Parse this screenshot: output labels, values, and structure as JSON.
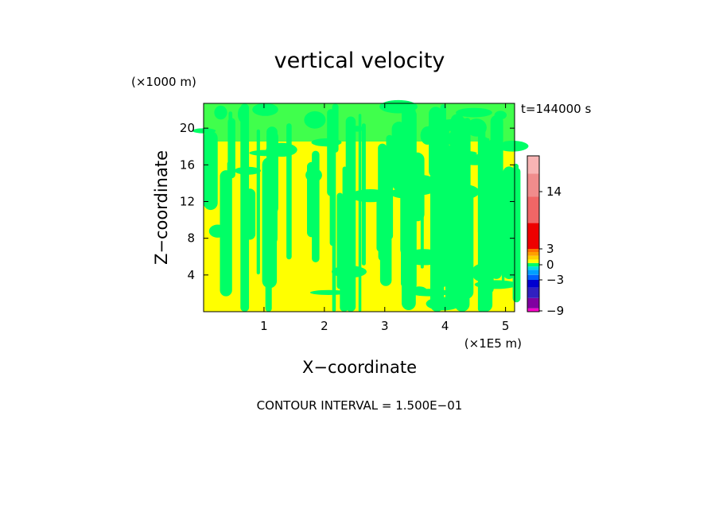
{
  "chart_data": {
    "type": "heatmap",
    "title": "vertical velocity",
    "xlabel": "X−coordinate",
    "ylabel": "Z−coordinate",
    "x_unit": "(×1E5 m)",
    "y_unit": "(×1000 m)",
    "time_label": "t=144000 s",
    "footer": "CONTOUR INTERVAL = 1.500E−01",
    "xlim": [
      0,
      5.15
    ],
    "ylim": [
      0,
      22.7
    ],
    "x_ticks": [
      1,
      2,
      3,
      4,
      5
    ],
    "x_tick_labels": [
      "1",
      "2",
      "3",
      "4",
      "5"
    ],
    "y_ticks": [
      4,
      8,
      12,
      16,
      20
    ],
    "y_tick_labels": [
      "4",
      "8",
      "12",
      "16",
      "20"
    ],
    "field_colors": {
      "positive": "#ffff00",
      "negative": "#00ff66"
    },
    "colorbar": {
      "tick_labels": [
        {
          "value": -9,
          "label": "−9"
        },
        {
          "value": -3,
          "label": "−3"
        },
        {
          "value": 0,
          "label": "0"
        },
        {
          "value": 3,
          "label": "3"
        },
        {
          "value": 14,
          "label": "14"
        }
      ],
      "bands": [
        {
          "from": -10,
          "to": -8.5,
          "color": "#ff00cc"
        },
        {
          "from": -8.5,
          "to": -6.5,
          "color": "#8000a0"
        },
        {
          "from": -6.5,
          "to": -4.5,
          "color": "#3020c0"
        },
        {
          "from": -4.5,
          "to": -3,
          "color": "#0000d0"
        },
        {
          "from": -3,
          "to": -2,
          "color": "#0060ff"
        },
        {
          "from": -2,
          "to": -1,
          "color": "#00a0ff"
        },
        {
          "from": -1,
          "to": -0.33,
          "color": "#00e0e0"
        },
        {
          "from": -0.33,
          "to": 0.33,
          "color": "#00ff66"
        },
        {
          "from": 0.33,
          "to": 1,
          "color": "#ffff00"
        },
        {
          "from": 1,
          "to": 1.7,
          "color": "#ffd000"
        },
        {
          "from": 1.7,
          "to": 2.4,
          "color": "#ffa000"
        },
        {
          "from": 2.4,
          "to": 3,
          "color": "#ff7000"
        },
        {
          "from": 3,
          "to": 8,
          "color": "#ee0000"
        },
        {
          "from": 8,
          "to": 13,
          "color": "#f06666"
        },
        {
          "from": 13,
          "to": 18,
          "color": "#f08c8c"
        },
        {
          "from": 18,
          "to": 22,
          "color": "#f8b4b4"
        }
      ]
    }
  }
}
